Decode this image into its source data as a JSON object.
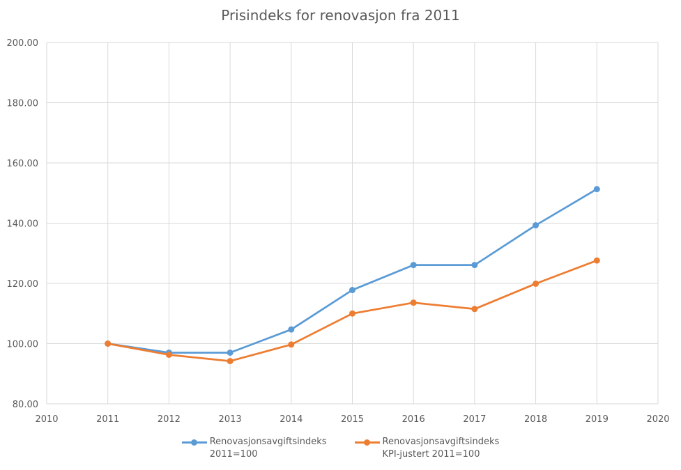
{
  "chart_data": {
    "type": "line",
    "title": "Prisindeks for renovasjon fra 2011",
    "xlim": [
      2010,
      2020
    ],
    "x_ticks": [
      "2010",
      "2011",
      "2012",
      "2013",
      "2014",
      "2015",
      "2016",
      "2017",
      "2018",
      "2019",
      "2020"
    ],
    "ylim": [
      80,
      200
    ],
    "y_ticks": [
      "80.00",
      "100.00",
      "120.00",
      "140.00",
      "160.00",
      "180.00",
      "200.00"
    ],
    "grid": true,
    "legend_position": "bottom",
    "x": [
      2011,
      2012,
      2013,
      2014,
      2015,
      2016,
      2017,
      2018,
      2019
    ],
    "series": [
      {
        "name": "Renovasjonsavgiftsindeks\n2011=100",
        "color": "#5b9bd5",
        "values": [
          100,
          97,
          97,
          104.7,
          117.8,
          126.1,
          126.1,
          139.3,
          151.3
        ]
      },
      {
        "name": "Renovasjonsavgiftsindeks\nKPI-justert 2011=100",
        "color": "#ed7d31",
        "values": [
          100,
          96.3,
          94.2,
          99.7,
          110,
          113.6,
          111.5,
          119.9,
          127.6
        ]
      }
    ]
  }
}
